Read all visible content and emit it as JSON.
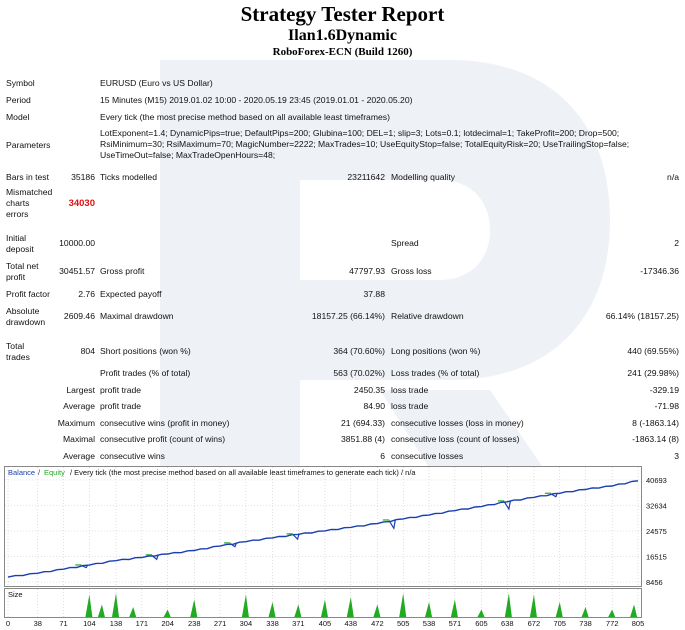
{
  "report": {
    "title": "Strategy Tester Report",
    "subtitle": "Ilan1.6Dynamic",
    "build": "RoboForex-ECN (Build 1260)"
  },
  "info": {
    "symbol_label": "Symbol",
    "symbol_value": "EURUSD (Euro vs US Dollar)",
    "period_label": "Period",
    "period_value": "15 Minutes (M15) 2019.01.02 10:00 - 2020.05.19 23:45 (2019.01.01 - 2020.05.20)",
    "model_label": "Model",
    "model_value": "Every tick (the most precise method based on all available least timeframes)",
    "parameters_label": "Parameters",
    "parameters_lines": [
      "LotExponent=1.4; DynamicPips=true; DefaultPips=200; Glubina=100; DEL=1; slip=3; Lots=0.1; lotdecimal=1; TakeProfit=200; Drop=500;",
      "RsiMinimum=30; RsiMaximum=70; MagicNumber=2222; MaxTrades=10; UseEquityStop=false; TotalEquityRisk=20; UseTrailingStop=false;",
      "UseTimeOut=false; MaxTradeOpenHours=48;"
    ]
  },
  "stats": {
    "bars_label": "Bars in test",
    "bars_value": "35186",
    "ticks_label": "Ticks modelled",
    "ticks_value": "23211642",
    "quality_label": "Modelling quality",
    "quality_value": "n/a",
    "mismatch_label": [
      "Mismatched",
      "charts",
      "errors"
    ],
    "mismatch_value": "34030",
    "deposit_label": [
      "Initial",
      "deposit"
    ],
    "deposit_value": "10000.00",
    "spread_label": "Spread",
    "spread_value": "2",
    "netprofit_label": [
      "Total net",
      "profit"
    ],
    "netprofit_value": "30451.57",
    "grossprofit_label": "Gross profit",
    "grossprofit_value": "47797.93",
    "grossloss_label": "Gross loss",
    "grossloss_value": "-17346.36",
    "pf_label": "Profit factor",
    "pf_value": "2.76",
    "payoff_label": "Expected payoff",
    "payoff_value": "37.88",
    "absdd_label": [
      "Absolute",
      "drawdown"
    ],
    "absdd_value": "2609.46",
    "maxdd_label": "Maximal drawdown",
    "maxdd_value": "18157.25 (66.14%)",
    "reldd_label": "Relative drawdown",
    "reldd_value": "66.14% (18157.25)",
    "trades_label": [
      "Total",
      "trades"
    ],
    "trades_value": "804",
    "short_label": "Short positions (won %)",
    "short_value": "364 (70.60%)",
    "long_label": "Long positions (won %)",
    "long_value": "440 (69.55%)",
    "ptrades_label": "Profit trades (% of total)",
    "ptrades_value": "563 (70.02%)",
    "ltrades_label": "Loss trades (% of total)",
    "ltrades_value": "241 (29.98%)",
    "largest": "Largest",
    "average": "Average",
    "maximum": "Maximum",
    "maximal": "Maximal",
    "profit_trade": "profit trade",
    "loss_trade": "loss trade",
    "largest_profit": "2450.35",
    "largest_loss": "-329.19",
    "avg_profit": "84.90",
    "avg_loss": "-71.98",
    "cons_wins_label": "consecutive wins (profit in money)",
    "cons_wins_value": "21 (694.33)",
    "cons_losses_label": "consecutive losses (loss in money)",
    "cons_losses_value": "8 (-1863.14)",
    "cons_profit_label": "consecutive profit (count of wins)",
    "cons_profit_value": "3851.88 (4)",
    "cons_loss_label": "consecutive loss (count of losses)",
    "cons_loss_value": "-1863.14 (8)",
    "avg_cons_wins_label": "consecutive wins",
    "avg_cons_wins_value": "6",
    "avg_cons_losses_label": "consecutive losses",
    "avg_cons_losses_value": "3"
  },
  "colors": {
    "balance": "#1a3fb0",
    "equity": "#22aa22",
    "size_bars": "#22aa22",
    "error": "#e01010",
    "watermark": "#eef1f6"
  },
  "chart_data": {
    "type": "line",
    "legend": {
      "balance": "Balance",
      "sep": "/",
      "equity": "Equity",
      "desc": "/ Every tick (the most precise method based on all available least timeframes to generate each tick) / n/a"
    },
    "y_ticks": [
      "40693",
      "32634",
      "24575",
      "16515",
      "8456"
    ],
    "ylim": [
      8456,
      40693
    ],
    "x_ticks": [
      "0",
      "38",
      "71",
      "104",
      "138",
      "171",
      "204",
      "238",
      "271",
      "304",
      "338",
      "371",
      "405",
      "438",
      "472",
      "505",
      "538",
      "571",
      "605",
      "638",
      "672",
      "705",
      "738",
      "772",
      "805"
    ],
    "xlim": [
      0,
      805
    ],
    "balance": [
      [
        0,
        10000
      ],
      [
        38,
        11200
      ],
      [
        71,
        12500
      ],
      [
        104,
        13800
      ],
      [
        138,
        15200
      ],
      [
        171,
        16200
      ],
      [
        204,
        17300
      ],
      [
        238,
        18400
      ],
      [
        271,
        19800
      ],
      [
        304,
        21200
      ],
      [
        338,
        22400
      ],
      [
        371,
        23500
      ],
      [
        405,
        24600
      ],
      [
        438,
        25700
      ],
      [
        472,
        26900
      ],
      [
        505,
        28400
      ],
      [
        538,
        29600
      ],
      [
        571,
        31000
      ],
      [
        605,
        32300
      ],
      [
        638,
        33800
      ],
      [
        672,
        35200
      ],
      [
        705,
        36500
      ],
      [
        738,
        37700
      ],
      [
        772,
        38800
      ],
      [
        805,
        40450
      ]
    ],
    "equity_dips": [
      [
        100,
        13000
      ],
      [
        190,
        15600
      ],
      [
        290,
        19600
      ],
      [
        370,
        22000
      ],
      [
        493,
        25400
      ],
      [
        640,
        31500
      ],
      [
        700,
        35400
      ]
    ],
    "size_label": "Size",
    "size_bars": [
      [
        104,
        0.9
      ],
      [
        120,
        0.5
      ],
      [
        138,
        0.95
      ],
      [
        160,
        0.4
      ],
      [
        204,
        0.3
      ],
      [
        238,
        0.7
      ],
      [
        304,
        0.9
      ],
      [
        338,
        0.6
      ],
      [
        371,
        0.5
      ],
      [
        405,
        0.7
      ],
      [
        438,
        0.8
      ],
      [
        472,
        0.5
      ],
      [
        505,
        0.95
      ],
      [
        538,
        0.6
      ],
      [
        571,
        0.7
      ],
      [
        605,
        0.3
      ],
      [
        640,
        0.95
      ],
      [
        672,
        0.9
      ],
      [
        705,
        0.6
      ],
      [
        738,
        0.4
      ],
      [
        772,
        0.3
      ],
      [
        800,
        0.5
      ]
    ]
  }
}
